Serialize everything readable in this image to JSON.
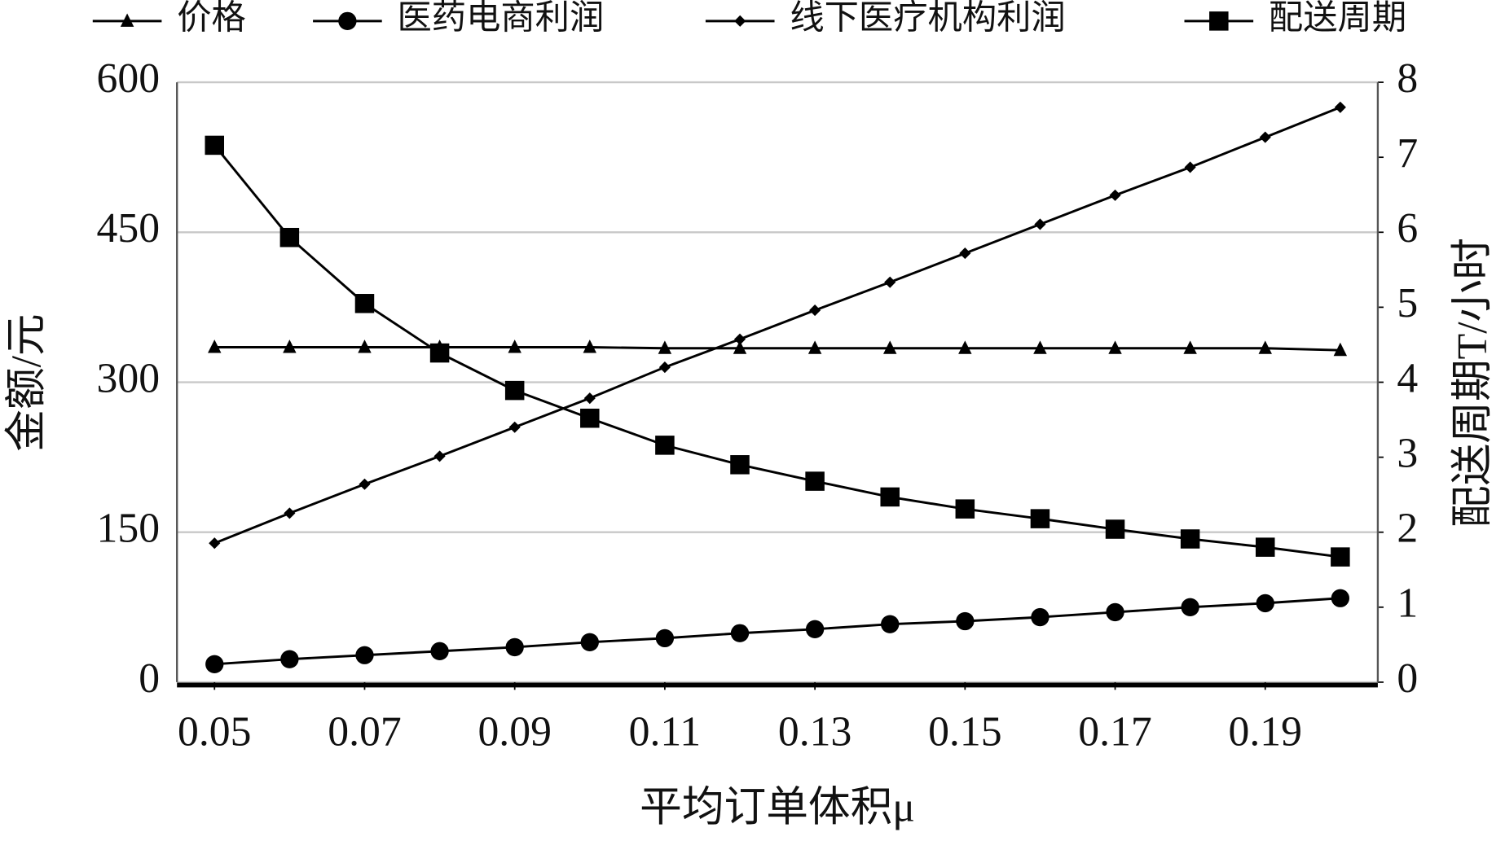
{
  "chart_data": {
    "type": "line",
    "x_label": "平均订单体积μ",
    "y_label": "金额/元",
    "y2_label": "配送周期T/小时",
    "x": [
      0.05,
      0.06,
      0.07,
      0.08,
      0.09,
      0.1,
      0.11,
      0.12,
      0.13,
      0.14,
      0.15,
      0.16,
      0.17,
      0.18,
      0.19,
      0.2
    ],
    "xlim": [
      0.045,
      0.205
    ],
    "xticks": [
      0.05,
      0.07,
      0.09,
      0.11,
      0.13,
      0.15,
      0.17,
      0.19
    ],
    "ylim": [
      0,
      600
    ],
    "yticks": [
      0,
      150,
      300,
      450,
      600
    ],
    "y2lim": [
      0,
      8
    ],
    "y2ticks": [
      0,
      1,
      2,
      3,
      4,
      5,
      6,
      7,
      8
    ],
    "grid": true,
    "legend": "top",
    "series": [
      {
        "name": "价格",
        "color": "#000000",
        "marker": "triangle",
        "values": [
          335,
          335,
          335,
          335,
          335,
          335,
          334,
          334,
          334,
          334,
          334,
          334,
          334,
          334,
          334,
          332
        ]
      },
      {
        "name": "医药电商利润",
        "color": "#000000",
        "marker": "circle",
        "values": [
          18,
          23,
          27,
          31,
          35,
          40,
          44,
          49,
          53,
          58,
          61,
          65,
          70,
          75,
          79,
          84
        ]
      },
      {
        "name": "线下医疗机构利润",
        "color": "#000000",
        "marker": "diamond",
        "values": [
          139,
          169,
          198,
          226,
          255,
          284,
          315,
          343,
          372,
          400,
          429,
          458,
          487,
          515,
          545,
          575
        ]
      },
      {
        "name": "配送周期",
        "color": "#000000",
        "marker": "square",
        "axis": "y2",
        "values": [
          7.16,
          5.93,
          5.05,
          4.39,
          3.89,
          3.52,
          3.16,
          2.9,
          2.68,
          2.47,
          2.31,
          2.18,
          2.04,
          1.91,
          1.8,
          1.67
        ]
      }
    ]
  }
}
